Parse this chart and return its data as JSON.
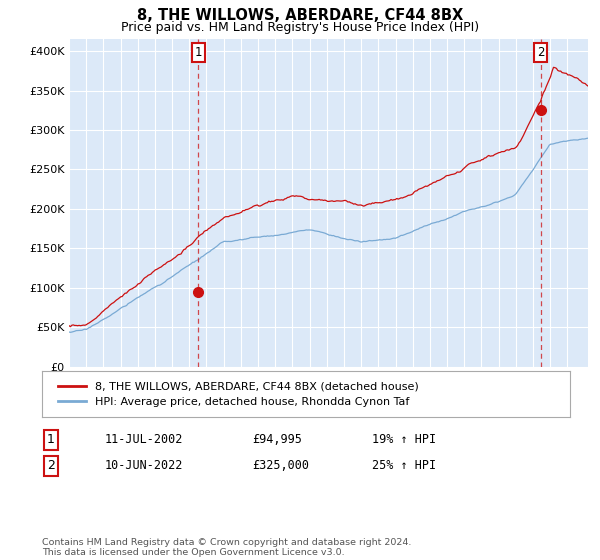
{
  "title": "8, THE WILLOWS, ABERDARE, CF44 8BX",
  "subtitle": "Price paid vs. HM Land Registry's House Price Index (HPI)",
  "ylabel_ticks": [
    "£0",
    "£50K",
    "£100K",
    "£150K",
    "£200K",
    "£250K",
    "£300K",
    "£350K",
    "£400K"
  ],
  "ytick_values": [
    0,
    50000,
    100000,
    150000,
    200000,
    250000,
    300000,
    350000,
    400000
  ],
  "ylim": [
    0,
    415000
  ],
  "xlim_start": 1995.0,
  "xlim_end": 2025.2,
  "plot_bg_color": "#dce9f8",
  "hpi_color": "#7aaad4",
  "price_color": "#cc1111",
  "marker1_date": 2002.53,
  "marker1_price": 94995,
  "marker2_date": 2022.44,
  "marker2_price": 325000,
  "legend_label1": "8, THE WILLOWS, ABERDARE, CF44 8BX (detached house)",
  "legend_label2": "HPI: Average price, detached house, Rhondda Cynon Taf",
  "annotation1_label": "1",
  "annotation1_date": "11-JUL-2002",
  "annotation1_price": "£94,995",
  "annotation1_hpi": "19% ↑ HPI",
  "annotation2_label": "2",
  "annotation2_date": "10-JUN-2022",
  "annotation2_price": "£325,000",
  "annotation2_hpi": "25% ↑ HPI",
  "footer": "Contains HM Land Registry data © Crown copyright and database right 2024.\nThis data is licensed under the Open Government Licence v3.0."
}
